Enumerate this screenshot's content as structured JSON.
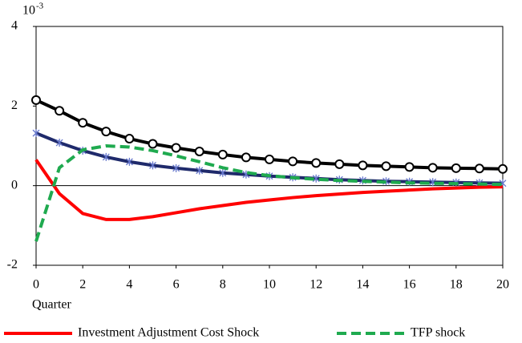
{
  "chart_data": {
    "type": "line",
    "y_scale_base": "10",
    "y_scale_exponent": "-3",
    "x_label": "Quarter",
    "x": [
      0,
      1,
      2,
      3,
      4,
      5,
      6,
      7,
      8,
      9,
      10,
      11,
      12,
      13,
      14,
      15,
      16,
      17,
      18,
      19,
      20
    ],
    "xlim": [
      0,
      20
    ],
    "xticks": [
      0,
      2,
      4,
      6,
      8,
      10,
      12,
      14,
      16,
      18,
      20
    ],
    "ylim": [
      -2,
      4
    ],
    "yticks": [
      -2,
      0,
      2,
      4
    ],
    "zero_line": true,
    "series": [
      {
        "color": "#000000",
        "marker": "circle",
        "dash": false,
        "values": [
          2.15,
          1.88,
          1.58,
          1.36,
          1.18,
          1.05,
          0.95,
          0.86,
          0.78,
          0.71,
          0.66,
          0.61,
          0.57,
          0.54,
          0.51,
          0.49,
          0.47,
          0.45,
          0.44,
          0.43,
          0.42
        ]
      },
      {
        "color": "#1f2a6b",
        "marker": "star",
        "dash": false,
        "values": [
          1.32,
          1.08,
          0.88,
          0.72,
          0.6,
          0.51,
          0.44,
          0.38,
          0.32,
          0.28,
          0.24,
          0.21,
          0.18,
          0.15,
          0.13,
          0.11,
          0.1,
          0.09,
          0.08,
          0.07,
          0.06
        ]
      },
      {
        "name": "Investment Adjustment Cost Shock",
        "color": "#ff0000",
        "marker": "none",
        "dash": false,
        "values": [
          0.65,
          -0.2,
          -0.7,
          -0.85,
          -0.85,
          -0.78,
          -0.68,
          -0.58,
          -0.5,
          -0.42,
          -0.36,
          -0.3,
          -0.25,
          -0.21,
          -0.17,
          -0.14,
          -0.11,
          -0.08,
          -0.06,
          -0.04,
          -0.03
        ]
      },
      {
        "name": "TFP shock",
        "color": "#1faa4f",
        "marker": "none",
        "dash": true,
        "values": [
          -1.4,
          0.45,
          0.9,
          1.0,
          0.97,
          0.88,
          0.75,
          0.6,
          0.45,
          0.33,
          0.25,
          0.2,
          0.16,
          0.13,
          0.11,
          0.09,
          0.07,
          0.06,
          0.05,
          0.04,
          0.03
        ]
      }
    ],
    "legend": "bottom"
  }
}
